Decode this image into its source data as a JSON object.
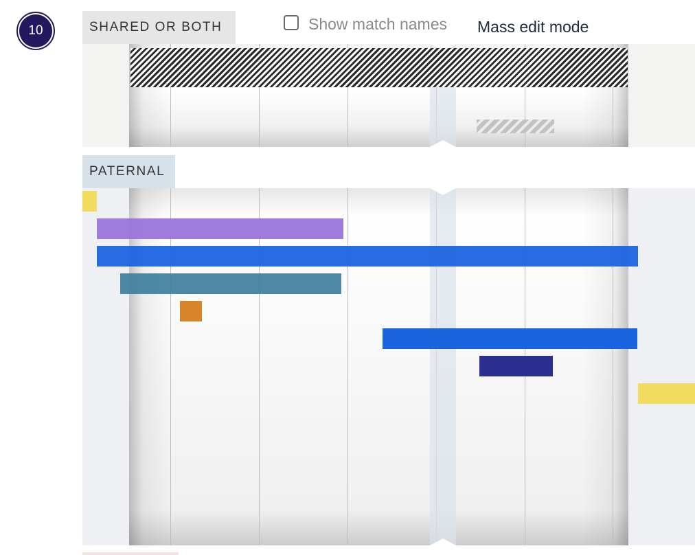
{
  "chromosome": {
    "number": "10"
  },
  "controls": {
    "show_match_names_label": "Show match names",
    "show_match_names_checked": false,
    "mass_edit_label": "Mass edit mode"
  },
  "sections": {
    "shared": {
      "label": "SHARED OR BOTH"
    },
    "paternal": {
      "label": "PATERNAL"
    }
  },
  "colors": {
    "badge": "#23195f",
    "segment_yellow": "#f1dc60",
    "segment_purple": "#9b74dc",
    "segment_blue": "#1b64e0",
    "segment_teal": "#3e7f9e",
    "segment_orange": "#d8852a",
    "segment_navy": "#2b2f8f"
  }
}
